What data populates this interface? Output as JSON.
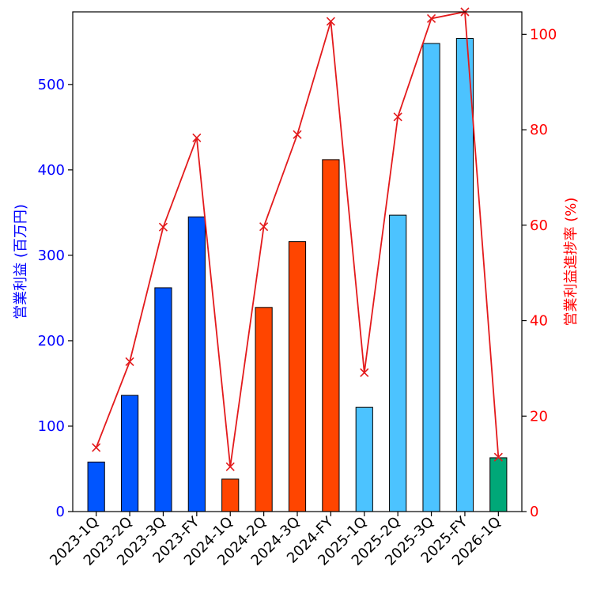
{
  "chart_data": {
    "type": "bar+line",
    "categories": [
      "2023-1Q",
      "2023-2Q",
      "2023-3Q",
      "2023-FY",
      "2024-1Q",
      "2024-2Q",
      "2024-3Q",
      "2024-FY",
      "2025-1Q",
      "2025-2Q",
      "2025-3Q",
      "2025-FY",
      "2026-1Q"
    ],
    "bar_series": {
      "name": "営業利益 (百万円)",
      "values": [
        58,
        136,
        262,
        345,
        38,
        239,
        316,
        412,
        122,
        347,
        548,
        554,
        63
      ],
      "colors": [
        "#0055ff",
        "#0055ff",
        "#0055ff",
        "#0055ff",
        "#ff4500",
        "#ff4500",
        "#ff4500",
        "#ff4500",
        "#4cc3ff",
        "#4cc3ff",
        "#4cc3ff",
        "#4cc3ff",
        "#00a878"
      ]
    },
    "line_series": {
      "name": "営業利益進捗率 (%)",
      "values": [
        13.4,
        31.4,
        59.6,
        78.3,
        9.4,
        59.7,
        79.0,
        102.7,
        29.1,
        82.7,
        103.3,
        104.7,
        11.4
      ],
      "color": "#e31a1c",
      "marker": "x"
    },
    "left_axis": {
      "label": "営業利益 (百万円)",
      "ylim": [
        0,
        585
      ],
      "ticks": [
        0,
        100,
        200,
        300,
        400,
        500
      ],
      "tick_labels": [
        "0",
        "100",
        "200",
        "300",
        "400",
        "500"
      ],
      "color": "#0000ff"
    },
    "right_axis": {
      "label": "営業利益進捗率 (%)",
      "ylim": [
        0,
        104.7
      ],
      "ticks": [
        0,
        20,
        40,
        60,
        80,
        100
      ],
      "tick_labels": [
        "0",
        "20",
        "40",
        "60",
        "80",
        "100"
      ],
      "color": "#ff0000"
    }
  }
}
